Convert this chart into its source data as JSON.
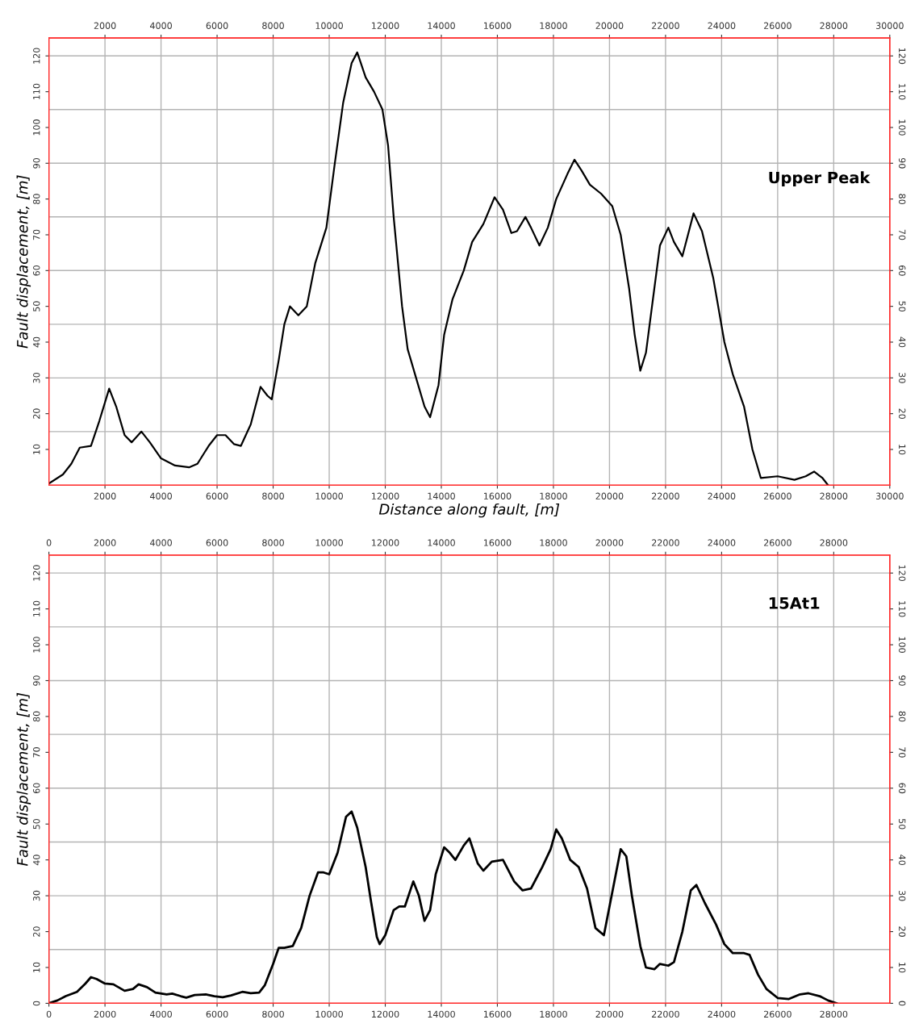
{
  "chart_data": [
    {
      "type": "line",
      "xlabel": "Distance along fault, [m]",
      "ylabel": "Fault displacement, [m]",
      "annotations": [
        "Upper Peak"
      ],
      "xlim": [
        0,
        30000
      ],
      "xticks": [
        2000,
        4000,
        6000,
        8000,
        10000,
        12000,
        14000,
        16000,
        18000,
        20000,
        22000,
        24000,
        26000,
        28000,
        30000
      ],
      "x2lim": [
        0,
        30000
      ],
      "x2ticks": [
        2000,
        4000,
        6000,
        8000,
        10000,
        12000,
        14000,
        16000,
        18000,
        20000,
        22000,
        24000,
        26000,
        28000,
        30000
      ],
      "ylim": [
        0,
        125
      ],
      "yticks": [
        10,
        20,
        30,
        40,
        50,
        60,
        70,
        80,
        90,
        100,
        110,
        120
      ],
      "y2lim": [
        0,
        125
      ],
      "y2ticks": [
        10,
        20,
        30,
        40,
        50,
        60,
        70,
        80,
        90,
        100,
        110,
        120
      ],
      "grid": "x",
      "legend": false,
      "marker": "none",
      "line_style": "solid",
      "ref_lines": [
        {
          "axis": "y",
          "value": 15,
          "color": "#b4b4b4"
        },
        {
          "axis": "y",
          "value": 30,
          "color": "#b4b4b4"
        },
        {
          "axis": "y",
          "value": 45,
          "color": "#b4b4b4"
        },
        {
          "axis": "y",
          "value": 60,
          "color": "#b4b4b4"
        },
        {
          "axis": "y",
          "value": 75,
          "color": "#b4b4b4"
        },
        {
          "axis": "y",
          "value": 90,
          "color": "#b4b4b4"
        },
        {
          "axis": "y",
          "value": 105,
          "color": "#b4b4b4"
        },
        {
          "axis": "y",
          "value": 120,
          "color": "#b4b4b4"
        }
      ],
      "series": [
        {
          "color": "#000000",
          "x": [
            0,
            500,
            800,
            1100,
            1500,
            1800,
            2150,
            2400,
            2700,
            2950,
            3300,
            3600,
            4000,
            4500,
            5000,
            5300,
            5700,
            6000,
            6300,
            6600,
            6850,
            7200,
            7550,
            7800,
            7950,
            8200,
            8400,
            8600,
            8900,
            9200,
            9500,
            9900,
            10200,
            10500,
            10800,
            11000,
            11300,
            11600,
            11900,
            12100,
            12300,
            12600,
            12800,
            13100,
            13400,
            13600,
            13900,
            14100,
            14400,
            14800,
            15100,
            15500,
            15900,
            16200,
            16500,
            16700,
            17000,
            17200,
            17500,
            17800,
            18100,
            18500,
            18750,
            19000,
            19300,
            19700,
            20100,
            20400,
            20700,
            20900,
            21100,
            21300,
            21600,
            21800,
            22100,
            22300,
            22600,
            22800,
            23000,
            23300,
            23700,
            24100,
            24400,
            24800,
            25100,
            25400,
            26000,
            26600,
            27000,
            27300,
            27600,
            27800
          ],
          "values": [
            0.5,
            3,
            6,
            10.5,
            11,
            18,
            27,
            22,
            14,
            12,
            15,
            12,
            7.5,
            5.5,
            5,
            6,
            11,
            14,
            14,
            11.5,
            11,
            17,
            27.5,
            25,
            24,
            35,
            45,
            50,
            47.5,
            50,
            62,
            72,
            90,
            107,
            118,
            121,
            114,
            110,
            105,
            95,
            75,
            50,
            38,
            30,
            22,
            19,
            28,
            42,
            52,
            60,
            68,
            73,
            80.5,
            77,
            70.5,
            71,
            75,
            72,
            67,
            72,
            80,
            87,
            91,
            88,
            84,
            81.5,
            78,
            70,
            55,
            42,
            32,
            37,
            55,
            67,
            72,
            68,
            64,
            70,
            76,
            71,
            58,
            40,
            31,
            22,
            10,
            2,
            2.5,
            1.5,
            2.5,
            3.8,
            2,
            0
          ]
        }
      ]
    },
    {
      "type": "line",
      "ylabel": "Fault displacement, [m]",
      "annotations": [
        "15At1"
      ],
      "xlim": [
        0,
        30000
      ],
      "xticks": [
        0,
        2000,
        4000,
        6000,
        8000,
        10000,
        12000,
        14000,
        16000,
        18000,
        20000,
        22000,
        24000,
        26000,
        28000
      ],
      "x2lim": [
        0,
        30000
      ],
      "x2ticks": [
        0,
        2000,
        4000,
        6000,
        8000,
        10000,
        12000,
        14000,
        16000,
        18000,
        20000,
        22000,
        24000,
        26000,
        28000
      ],
      "ylim": [
        0,
        125
      ],
      "yticks": [
        0,
        10,
        20,
        30,
        40,
        50,
        60,
        70,
        80,
        90,
        100,
        110,
        120
      ],
      "y2lim": [
        0,
        125
      ],
      "y2ticks": [
        0,
        10,
        20,
        30,
        40,
        50,
        60,
        70,
        80,
        90,
        100,
        110,
        120
      ],
      "grid": "x",
      "legend": false,
      "marker": "none",
      "line_style": "solid",
      "ref_lines": [
        {
          "axis": "y",
          "value": 15,
          "color": "#b4b4b4"
        },
        {
          "axis": "y",
          "value": 30,
          "color": "#b4b4b4"
        },
        {
          "axis": "y",
          "value": 45,
          "color": "#b4b4b4"
        },
        {
          "axis": "y",
          "value": 60,
          "color": "#b4b4b4"
        },
        {
          "axis": "y",
          "value": 75,
          "color": "#b4b4b4"
        },
        {
          "axis": "y",
          "value": 90,
          "color": "#b4b4b4"
        },
        {
          "axis": "y",
          "value": 105,
          "color": "#b4b4b4"
        },
        {
          "axis": "y",
          "value": 120,
          "color": "#b4b4b4"
        }
      ],
      "series": [
        {
          "color": "#000000",
          "x": [
            0,
            300,
            600,
            1000,
            1300,
            1500,
            1700,
            2000,
            2300,
            2700,
            3000,
            3200,
            3500,
            3800,
            4200,
            4400,
            4700,
            4900,
            5200,
            5600,
            5900,
            6200,
            6500,
            6900,
            7200,
            7500,
            7700,
            8000,
            8200,
            8400,
            8700,
            9000,
            9300,
            9600,
            9800,
            10000,
            10300,
            10600,
            10800,
            11000,
            11300,
            11500,
            11700,
            11800,
            12000,
            12300,
            12500,
            12700,
            13000,
            13200,
            13400,
            13600,
            13800,
            14100,
            14300,
            14500,
            14800,
            15000,
            15300,
            15500,
            15800,
            16200,
            16600,
            16900,
            17200,
            17600,
            17900,
            18100,
            18300,
            18600,
            18900,
            19200,
            19500,
            19800,
            20100,
            20400,
            20600,
            20800,
            21100,
            21300,
            21600,
            21800,
            22100,
            22300,
            22600,
            22900,
            23100,
            23400,
            23800,
            24100,
            24400,
            24800,
            25000,
            25300,
            25600,
            26000,
            26400,
            26800,
            27100,
            27500,
            27800,
            28100
          ],
          "values": [
            0,
            0.8,
            2,
            3.2,
            5.5,
            7.3,
            6.8,
            5.5,
            5.3,
            3.5,
            4,
            5.3,
            4.5,
            3,
            2.5,
            2.7,
            2,
            1.6,
            2.3,
            2.5,
            2,
            1.7,
            2.2,
            3.2,
            2.8,
            3,
            5,
            11,
            15.5,
            15.5,
            16,
            21,
            30,
            36.5,
            36.5,
            36,
            42,
            52,
            53.5,
            49,
            38,
            28,
            18.5,
            16.5,
            19,
            26,
            27,
            27,
            34,
            30,
            23,
            26,
            36,
            43.5,
            42,
            40,
            44,
            46,
            39,
            37,
            39.5,
            40,
            34,
            31.5,
            32,
            38,
            43,
            48.5,
            46,
            40,
            38,
            32,
            21,
            19,
            31,
            43,
            41,
            30,
            16,
            10,
            9.5,
            11,
            10.5,
            11.5,
            20,
            31.5,
            33,
            28,
            22,
            16.5,
            14,
            14,
            13.5,
            8,
            4,
            1.5,
            1.2,
            2.5,
            2.8,
            2,
            0.8,
            0
          ]
        }
      ]
    }
  ]
}
